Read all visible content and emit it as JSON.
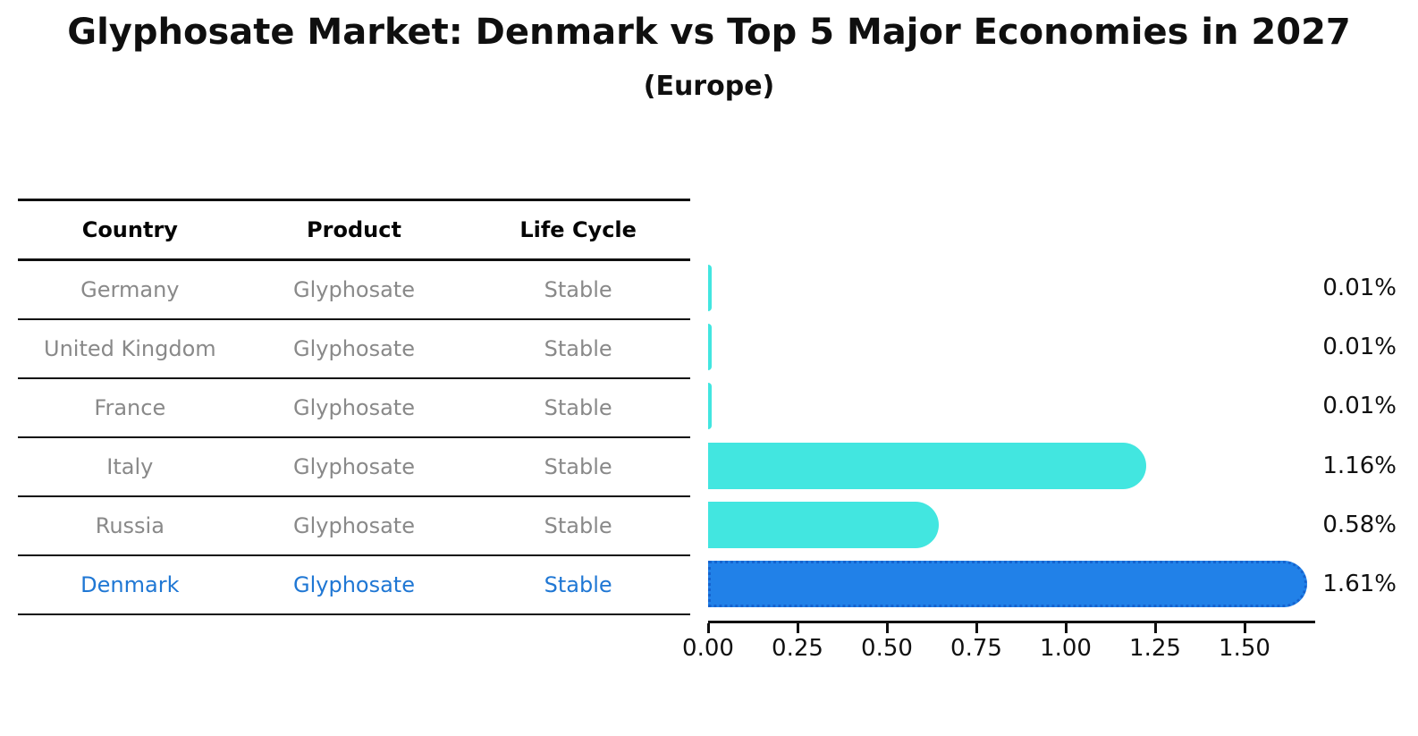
{
  "header": {
    "title": "Glyphosate Market: Denmark vs Top 5 Major Economies in 2027",
    "subtitle": "(Europe)"
  },
  "table": {
    "columns": [
      "Country",
      "Product",
      "Life Cycle"
    ],
    "rows": [
      {
        "country": "Germany",
        "product": "Glyphosate",
        "life_cycle": "Stable",
        "highlight": false
      },
      {
        "country": "United Kingdom",
        "product": "Glyphosate",
        "life_cycle": "Stable",
        "highlight": false
      },
      {
        "country": "France",
        "product": "Glyphosate",
        "life_cycle": "Stable",
        "highlight": false
      },
      {
        "country": "Italy",
        "product": "Glyphosate",
        "life_cycle": "Stable",
        "highlight": false
      },
      {
        "country": "Russia",
        "product": "Glyphosate",
        "life_cycle": "Stable",
        "highlight": false
      },
      {
        "country": "Denmark",
        "product": "Glyphosate",
        "life_cycle": "Stable",
        "highlight": true
      }
    ]
  },
  "chart_data": {
    "type": "bar",
    "orientation": "horizontal",
    "title": "Glyphosate Market: Denmark vs Top 5 Major Economies in 2027",
    "subtitle": "(Europe)",
    "categories": [
      "Germany",
      "United Kingdom",
      "France",
      "Italy",
      "Russia",
      "Denmark"
    ],
    "values": [
      0.01,
      0.01,
      0.01,
      1.16,
      0.58,
      1.61
    ],
    "value_labels": [
      "0.01%",
      "0.01%",
      "0.01%",
      "1.16%",
      "0.58%",
      "1.61%"
    ],
    "x_ticks": [
      "0.00",
      "0.25",
      "0.50",
      "0.75",
      "1.00",
      "1.25",
      "1.50"
    ],
    "xlim": [
      0,
      1.695
    ],
    "grid": false,
    "legend": "none",
    "highlight_index": 5
  },
  "colors": {
    "bar": "#42e6e0",
    "highlight_bar": "#2181e8",
    "highlight_bar_border": "#1563cf",
    "highlight_text": "#1f77d4",
    "muted_text": "#898989",
    "line": "#101010",
    "text": "#0f0f0f"
  }
}
